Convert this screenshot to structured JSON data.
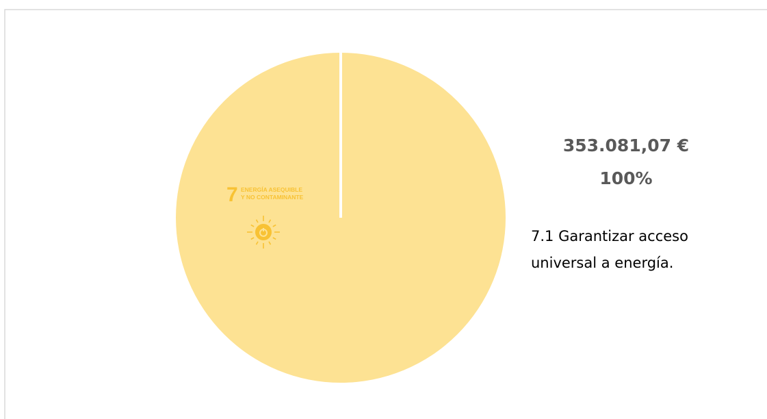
{
  "chart_data": {
    "type": "pie",
    "categories": [
      "7.1 Garantizar acceso universal a energía."
    ],
    "values": [
      353081.07
    ],
    "value_labels": [
      "353.081,07 €"
    ],
    "percents": [
      100
    ],
    "percent_labels": [
      "100%"
    ],
    "colors": [
      "#fde293"
    ],
    "icon": {
      "number": "7",
      "lines": [
        "ENERGÍA ASEQUIBLE",
        "Y NO CONTAMINANTE"
      ],
      "color": "#f8c234"
    }
  }
}
